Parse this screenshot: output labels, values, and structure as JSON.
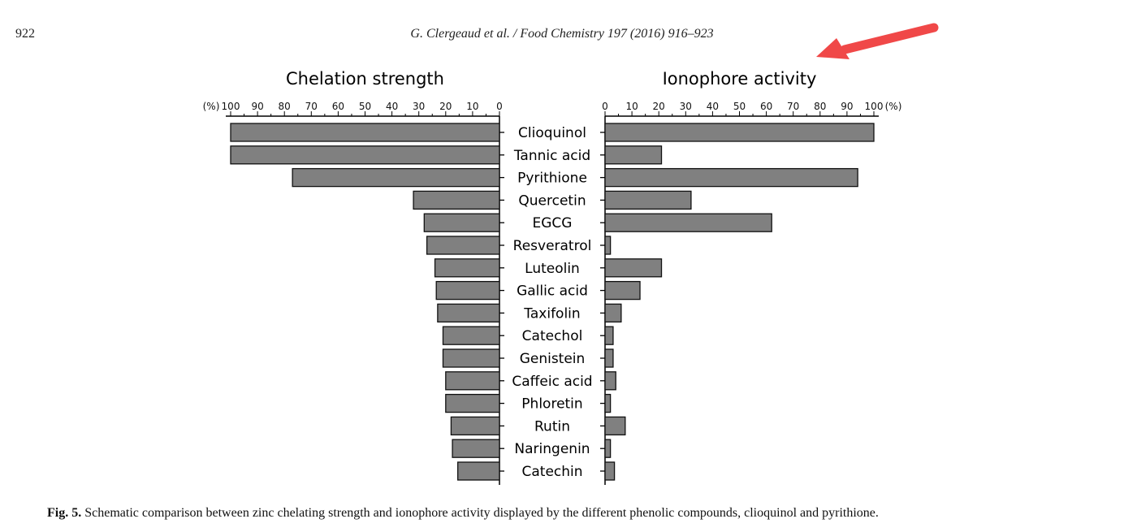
{
  "header": {
    "page_number": "922",
    "running_head": "G. Clergeaud et al. / Food Chemistry 197 (2016) 916–923"
  },
  "annotation": {
    "icon": "red-arrow-icon",
    "color": "#f04848"
  },
  "caption": {
    "label": "Fig. 5.",
    "text": " Schematic comparison between zinc chelating strength and ionophore activity displayed by the different phenolic compounds, clioquinol and pyrithione."
  },
  "chart_data": {
    "type": "bar",
    "orientation": "horizontal-butterfly",
    "categories": [
      "Clioquinol",
      "Tannic acid",
      "Pyrithione",
      "Quercetin",
      "EGCG",
      "Resveratrol",
      "Luteolin",
      "Gallic acid",
      "Taxifolin",
      "Catechol",
      "Genistein",
      "Caffeic acid",
      "Phloretin",
      "Rutin",
      "Naringenin",
      "Catechin"
    ],
    "series": [
      {
        "name": "Chelation strength",
        "side": "left",
        "values": [
          100,
          100,
          77,
          32,
          28,
          27,
          24,
          23.5,
          23,
          21,
          21,
          20,
          20,
          18,
          17.5,
          15.5
        ]
      },
      {
        "name": "Ionophore activity",
        "side": "right",
        "values": [
          100,
          21,
          94,
          32,
          62,
          2,
          21,
          13,
          6,
          3,
          3,
          4,
          2,
          7.5,
          2,
          3.5
        ]
      }
    ],
    "axis": {
      "range": [
        0,
        100
      ],
      "major_ticks": [
        0,
        10,
        20,
        30,
        40,
        50,
        60,
        70,
        80,
        90,
        100
      ],
      "minor_step": 5,
      "unit_label": "(%)"
    },
    "bar_color": "#808080",
    "grid": false,
    "legend": "none"
  }
}
